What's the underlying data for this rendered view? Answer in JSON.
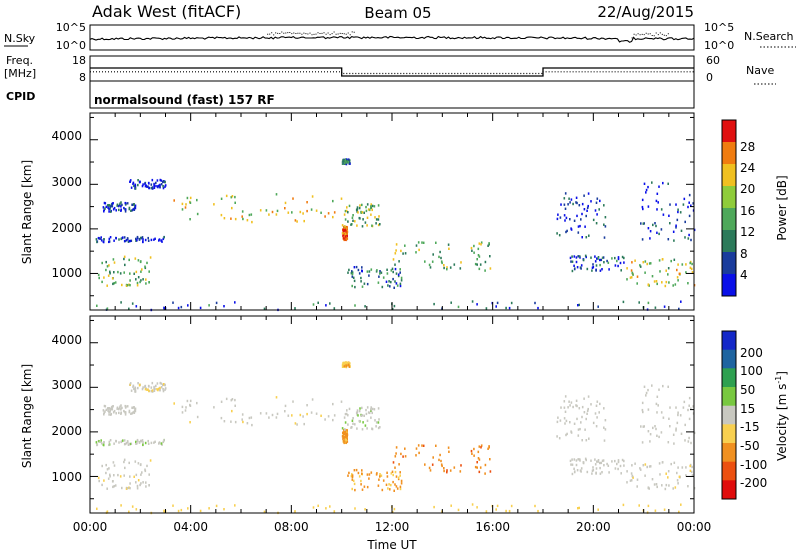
{
  "header": {
    "title": "Adak West (fitACF)",
    "beam": "Beam 05",
    "date": "22/Aug/2015"
  },
  "noise_panel": {
    "left_label": "N.Sky",
    "right_label": "N.Search",
    "ticks_left": [
      "10^5",
      "10^0"
    ],
    "ticks_right": [
      "10^5",
      "10^0"
    ]
  },
  "freq_panel": {
    "left_label_1": "Freq.",
    "left_label_2": "[MHz]",
    "ticks_left": [
      "18",
      "8"
    ],
    "ticks_right": [
      "60",
      "0"
    ],
    "right_label": "Nave",
    "freq_series": [
      [
        0,
        13.2
      ],
      [
        10.0,
        13.2
      ],
      [
        10.0,
        10.0
      ],
      [
        18.0,
        10.0
      ],
      [
        18.0,
        13.2
      ],
      [
        24,
        13.2
      ]
    ],
    "nave_series": [
      [
        0,
        22
      ],
      [
        10.0,
        22
      ],
      [
        10.0,
        18
      ],
      [
        18.0,
        18
      ],
      [
        18.0,
        22
      ],
      [
        24,
        22
      ]
    ]
  },
  "cpid": {
    "label": "CPID",
    "program": "normalsound (fast) 157 RF"
  },
  "power_panel": {
    "ylabel": "Slant Range [km]",
    "yticks": [
      "4000",
      "3000",
      "2000",
      "1000"
    ],
    "colorbar_label": "Power [dB]",
    "colorbar_ticks": [
      "28",
      "24",
      "20",
      "16",
      "12",
      "8",
      "4"
    ],
    "colors": [
      "#0a10e8",
      "#1a3c9c",
      "#2c7a5a",
      "#4ea85a",
      "#8fcc3a",
      "#f0c020",
      "#f07c10",
      "#e01010"
    ]
  },
  "velocity_panel": {
    "ylabel": "Slant Range [km]",
    "yticks": [
      "4000",
      "3000",
      "2000",
      "1000"
    ],
    "colorbar_label": "Velocity [m s",
    "colorbar_label_sup": "-1",
    "colorbar_label_end": "]",
    "colorbar_ticks": [
      "200",
      "100",
      "50",
      "15",
      "-15",
      "-50",
      "-100",
      "-200"
    ],
    "colors": [
      "#1428c8",
      "#1e64a0",
      "#2ea050",
      "#78c840",
      "#c8c8c0",
      "#f8d050",
      "#f09020",
      "#ec5010",
      "#e00c0c"
    ]
  },
  "time_axis": {
    "ticks": [
      "00:00",
      "04:00",
      "08:00",
      "12:00",
      "16:00",
      "20:00",
      "00:00"
    ],
    "label": "Time UT"
  },
  "chart_data": {
    "type": "heatmap",
    "title": "Adak West (fitACF)",
    "x": {
      "label": "Time UT",
      "range": [
        "00:00",
        "24:00"
      ]
    },
    "y": {
      "label": "Slant Range [km]",
      "range": [
        180,
        4600
      ]
    },
    "power_range_db": [
      0,
      30
    ],
    "velocity_range_ms": [
      -250,
      250
    ],
    "echo_regions": [
      {
        "t0": 0.3,
        "t1": 2.4,
        "r0": 720,
        "r1": 1380,
        "power": 14,
        "velocity": -5
      },
      {
        "t0": 0.5,
        "t1": 1.8,
        "r0": 2380,
        "r1": 2600,
        "power": 6,
        "velocity": 0
      },
      {
        "t0": 0.2,
        "t1": 3.0,
        "r0": 1700,
        "r1": 1820,
        "power": 5,
        "velocity": 5
      },
      {
        "t0": 1.5,
        "t1": 3.0,
        "r0": 2900,
        "r1": 3100,
        "power": 4,
        "velocity": -5
      },
      {
        "t0": 3.0,
        "t1": 10.0,
        "r0": 2150,
        "r1": 2800,
        "power": 17,
        "velocity": -5
      },
      {
        "t0": 10.0,
        "t1": 10.2,
        "r0": 1750,
        "r1": 2050,
        "power": 24,
        "velocity": -60
      },
      {
        "t0": 10.0,
        "t1": 10.3,
        "r0": 3450,
        "r1": 3560,
        "power": 10,
        "velocity": -40
      },
      {
        "t0": 10.0,
        "t1": 11.5,
        "r0": 2050,
        "r1": 2550,
        "power": 14,
        "velocity": 5
      },
      {
        "t0": 10.2,
        "t1": 12.4,
        "r0": 650,
        "r1": 1150,
        "power": 8,
        "velocity": -55
      },
      {
        "t0": 12.0,
        "t1": 16.0,
        "r0": 1000,
        "r1": 1720,
        "power": 13,
        "velocity": -90
      },
      {
        "t0": 18.5,
        "t1": 20.5,
        "r0": 1800,
        "r1": 2800,
        "power": 6,
        "velocity": 0
      },
      {
        "t0": 19.0,
        "t1": 21.3,
        "r0": 1050,
        "r1": 1400,
        "power": 8,
        "velocity": 0
      },
      {
        "t0": 21.3,
        "t1": 24.0,
        "r0": 700,
        "r1": 1320,
        "power": 16,
        "velocity": -5
      },
      {
        "t0": 21.8,
        "t1": 24.0,
        "r0": 1700,
        "r1": 3050,
        "power": 6,
        "velocity": 0
      },
      {
        "t0": 0.0,
        "t1": 24.0,
        "r0": 180,
        "r1": 380,
        "power": 8,
        "velocity": -30
      }
    ]
  }
}
